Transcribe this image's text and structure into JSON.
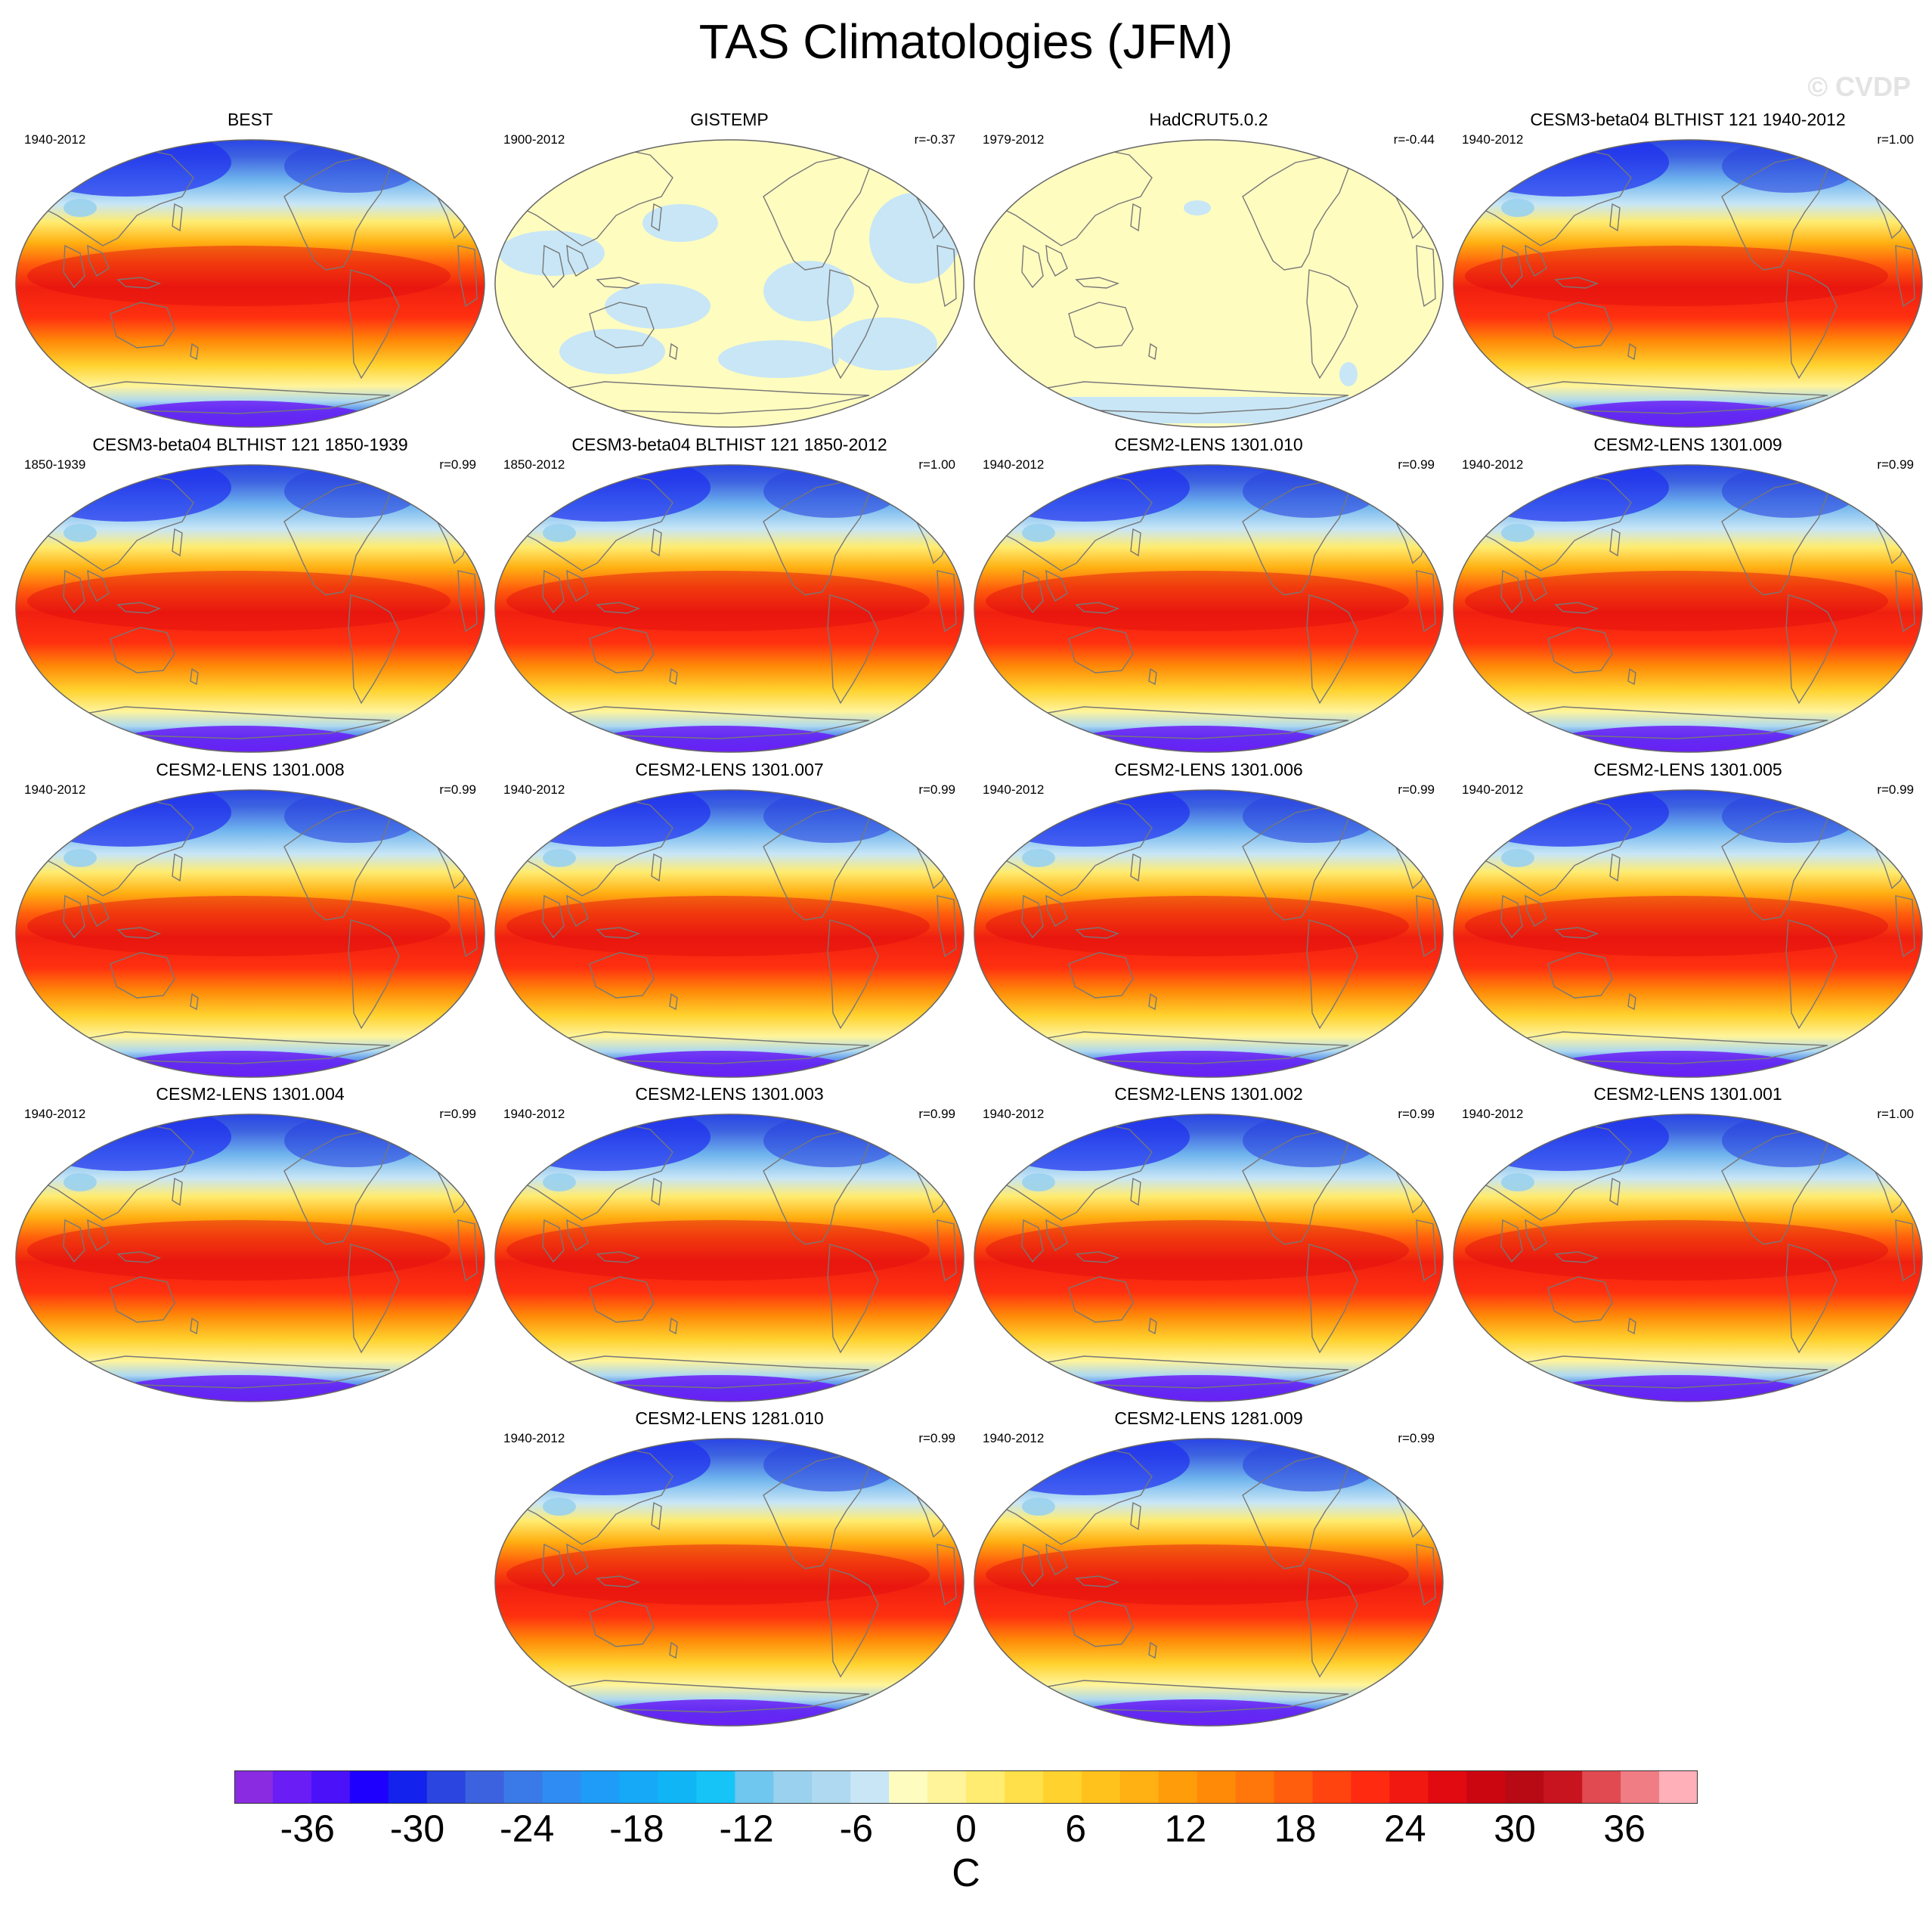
{
  "title": "TAS Climatologies (JFM)",
  "watermark": "© CVDP",
  "chart_data": {
    "type": "heatmap",
    "title": "TAS Climatologies (JFM)",
    "projection": "Robinson (Pacific-centered)",
    "colorbar": {
      "unit": "C",
      "ticks": [
        -36,
        -30,
        -24,
        -18,
        -12,
        -6,
        0,
        6,
        12,
        18,
        24,
        30,
        36
      ],
      "levels": [
        -40,
        40
      ],
      "colors": [
        "#8a2be2",
        "#6a1df5",
        "#4b12fa",
        "#1e00ff",
        "#1422ee",
        "#2a45e0",
        "#3d62e0",
        "#3a7ae8",
        "#2f8cf2",
        "#1e9cf7",
        "#15a9f7",
        "#10b5f5",
        "#16c4f8",
        "#6fc6ef",
        "#9ad1ee",
        "#aed9f0",
        "#c8e6f6",
        "#fffcc0",
        "#fff49a",
        "#ffec70",
        "#ffe04a",
        "#ffd22e",
        "#ffc21c",
        "#ffb012",
        "#ff9c0a",
        "#ff8a08",
        "#ff760a",
        "#ff5e0c",
        "#ff4410",
        "#ff2a10",
        "#f01810",
        "#e00a10",
        "#cc0610",
        "#b80a14",
        "#c8141e",
        "#e04a50",
        "#f07c84",
        "#ffb0b8"
      ]
    },
    "panels": [
      {
        "name": "BEST",
        "period": "1940-2012",
        "r": "",
        "style": "full"
      },
      {
        "name": "GISTEMP",
        "period": "1900-2012",
        "r": "r=-0.37",
        "style": "gistemp"
      },
      {
        "name": "HadCRUT5.0.2",
        "period": "1979-2012",
        "r": "r=-0.44",
        "style": "hadcrut"
      },
      {
        "name": "CESM3-beta04 BLTHIST 121 1940-2012",
        "period": "1940-2012",
        "r": "r=1.00",
        "style": "full"
      },
      {
        "name": "CESM3-beta04 BLTHIST 121 1850-1939",
        "period": "1850-1939",
        "r": "r=0.99",
        "style": "full"
      },
      {
        "name": "CESM3-beta04 BLTHIST 121 1850-2012",
        "period": "1850-2012",
        "r": "r=1.00",
        "style": "full"
      },
      {
        "name": "CESM2-LENS 1301.010",
        "period": "1940-2012",
        "r": "r=0.99",
        "style": "full"
      },
      {
        "name": "CESM2-LENS 1301.009",
        "period": "1940-2012",
        "r": "r=0.99",
        "style": "full"
      },
      {
        "name": "CESM2-LENS 1301.008",
        "period": "1940-2012",
        "r": "r=0.99",
        "style": "full"
      },
      {
        "name": "CESM2-LENS 1301.007",
        "period": "1940-2012",
        "r": "r=0.99",
        "style": "full"
      },
      {
        "name": "CESM2-LENS 1301.006",
        "period": "1940-2012",
        "r": "r=0.99",
        "style": "full"
      },
      {
        "name": "CESM2-LENS 1301.005",
        "period": "1940-2012",
        "r": "r=0.99",
        "style": "full"
      },
      {
        "name": "CESM2-LENS 1301.004",
        "period": "1940-2012",
        "r": "r=0.99",
        "style": "full"
      },
      {
        "name": "CESM2-LENS 1301.003",
        "period": "1940-2012",
        "r": "r=0.99",
        "style": "full"
      },
      {
        "name": "CESM2-LENS 1301.002",
        "period": "1940-2012",
        "r": "r=0.99",
        "style": "full"
      },
      {
        "name": "CESM2-LENS 1301.001",
        "period": "1940-2012",
        "r": "r=1.00",
        "style": "full"
      },
      {
        "name": "CESM2-LENS 1281.010",
        "period": "1940-2012",
        "r": "r=0.99",
        "style": "full"
      },
      {
        "name": "CESM2-LENS 1281.009",
        "period": "1940-2012",
        "r": "r=0.99",
        "style": "full"
      }
    ]
  }
}
